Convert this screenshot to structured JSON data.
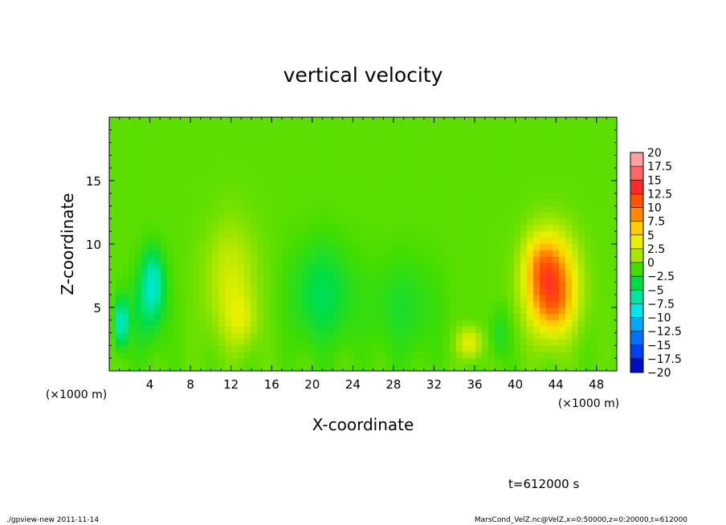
{
  "chart_data": {
    "type": "heatmap",
    "title": "vertical velocity",
    "xlabel": "X-coordinate",
    "ylabel": "Z-coordinate",
    "x_unit": "(×1000 m)",
    "y_unit": "(×1000 m)",
    "xlim": [
      0,
      50
    ],
    "ylim": [
      0,
      20
    ],
    "x_ticks": [
      "4",
      "8",
      "12",
      "16",
      "20",
      "24",
      "28",
      "32",
      "36",
      "40",
      "44",
      "48"
    ],
    "x_tick_values": [
      4,
      8,
      12,
      16,
      20,
      24,
      28,
      32,
      36,
      40,
      44,
      48
    ],
    "y_ticks": [
      "5",
      "10",
      "15"
    ],
    "y_tick_values": [
      5,
      10,
      15
    ],
    "colorbar": {
      "labels": [
        "20",
        "17.5",
        "15",
        "12.5",
        "10",
        "7.5",
        "5",
        "2.5",
        "0",
        "−2.5",
        "−5",
        "−7.5",
        "−10",
        "−12.5",
        "−15",
        "−17.5",
        "−20"
      ],
      "values": [
        20,
        17.5,
        15,
        12.5,
        10,
        7.5,
        5,
        2.5,
        0,
        -2.5,
        -5,
        -7.5,
        -10,
        -12.5,
        -15,
        -17.5,
        -20
      ],
      "colors": [
        "#ff9f9f",
        "#ff6666",
        "#ff2a2a",
        "#ff5500",
        "#ff8800",
        "#ffcc00",
        "#e9f000",
        "#a6e600",
        "#44dd00",
        "#00dd44",
        "#00e69e",
        "#00e6e6",
        "#00a8ff",
        "#0070ff",
        "#0040f0",
        "#0010c0",
        "#6a1fc0"
      ]
    },
    "features": [
      {
        "x": 4.3,
        "z": 7.0,
        "sx": 1.1,
        "sz": 2.5,
        "value": -6.5
      },
      {
        "x": 1.2,
        "z": 3.8,
        "sx": 0.6,
        "sz": 1.8,
        "value": -7.5
      },
      {
        "x": 3.5,
        "z": 4.5,
        "sx": 2.0,
        "sz": 3.0,
        "value": -2.5
      },
      {
        "x": 12.0,
        "z": 7.0,
        "sx": 2.5,
        "sz": 4.5,
        "value": 3.5
      },
      {
        "x": 13.0,
        "z": 4.0,
        "sx": 1.5,
        "sz": 2.0,
        "value": 2.5
      },
      {
        "x": 21.0,
        "z": 6.0,
        "sx": 3.0,
        "sz": 4.0,
        "value": -3.5
      },
      {
        "x": 29.0,
        "z": 5.0,
        "sx": 3.5,
        "sz": 4.0,
        "value": -2.0
      },
      {
        "x": 35.5,
        "z": 2.2,
        "sx": 1.2,
        "sz": 1.2,
        "value": 4.5
      },
      {
        "x": 38.5,
        "z": 3.0,
        "sx": 1.0,
        "sz": 2.0,
        "value": -2.0
      },
      {
        "x": 43.5,
        "z": 6.8,
        "sx": 2.4,
        "sz": 3.6,
        "value": 12.0
      },
      {
        "x": 42.5,
        "z": 8.5,
        "sx": 1.6,
        "sz": 2.2,
        "value": 3.0
      },
      {
        "x": 44.0,
        "z": 5.0,
        "sx": 1.6,
        "sz": 2.0,
        "value": 2.0
      }
    ]
  },
  "time_label": "t=612000 s",
  "footer": {
    "left": "./gpview-new   2011-11-14",
    "right": "MarsCond_VelZ.nc@VelZ,x=0:50000,z=0:20000,t=612000"
  }
}
